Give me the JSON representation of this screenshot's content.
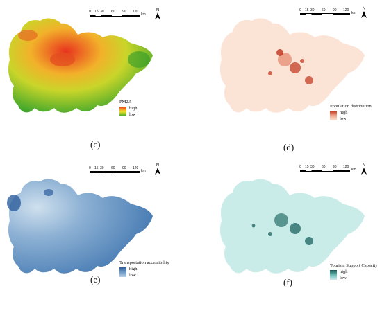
{
  "panels": [
    {
      "id": "c",
      "label": "(c)",
      "legend_title": "PM2.5",
      "legend_high": "high",
      "legend_low": "low",
      "colors": {
        "high": "#e8331f",
        "mid": "#f2e22a",
        "low": "#3aa52b"
      }
    },
    {
      "id": "d",
      "label": "(d)",
      "legend_title": "Population distribution",
      "legend_high": "high",
      "legend_low": "low",
      "colors": {
        "high": "#c0321a",
        "mid": "#f3a58a",
        "low": "#fbe3d6"
      }
    },
    {
      "id": "e",
      "label": "(e)",
      "legend_title": "Transportation accessibility",
      "legend_high": "high",
      "legend_low": "low",
      "colors": {
        "high": "#2d5e9c",
        "mid": "#6f9ac6",
        "low": "#b9d1e6"
      }
    },
    {
      "id": "f",
      "label": "(f)",
      "legend_title": "Tourism Support Capacity",
      "legend_high": "high",
      "legend_low": "low",
      "colors": {
        "high": "#0e5a55",
        "mid": "#6cbcb7",
        "low": "#c9ece9"
      }
    }
  ],
  "scale_bar": {
    "ticks": [
      "0",
      "15",
      "30",
      "60",
      "90",
      "120"
    ],
    "unit": "km"
  },
  "north_arrow": {
    "label": "N"
  }
}
